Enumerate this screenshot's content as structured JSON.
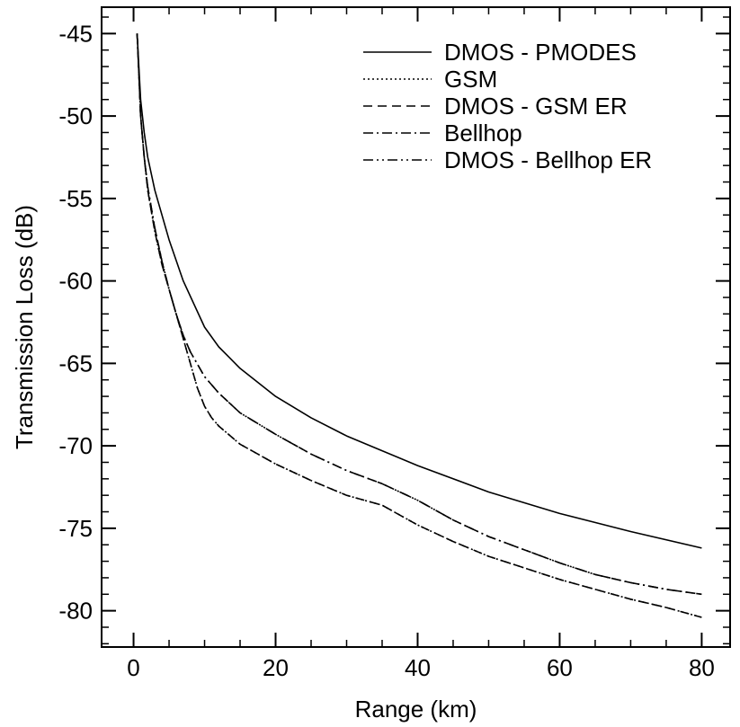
{
  "chart_data": {
    "type": "line",
    "xlabel": "Range (km)",
    "ylabel": "Transmission Loss (dB)",
    "xlim": [
      -4.5,
      84
    ],
    "ylim": [
      -82.2,
      -43.4
    ],
    "x_ticks": [
      0,
      20,
      40,
      60,
      80
    ],
    "x_tick_labels": [
      "0",
      "20",
      "40",
      "60",
      "80"
    ],
    "y_ticks": [
      -45,
      -50,
      -55,
      -60,
      -65,
      -70,
      -75,
      -80
    ],
    "y_tick_labels": [
      "-45",
      "-50",
      "-55",
      "-60",
      "-65",
      "-70",
      "-75",
      "-80"
    ],
    "x_minor_step": 5,
    "y_minor_step": 1,
    "grid": false,
    "legend_position": "top-right",
    "series": [
      {
        "name": "DMOS - PMODES",
        "line_style": "solid",
        "color": "#000000",
        "x": [
          0.5,
          0.8,
          1,
          1.5,
          2,
          3,
          4,
          5,
          7,
          10,
          12,
          15,
          20,
          25,
          30,
          35,
          40,
          50,
          60,
          70,
          80
        ],
        "y": [
          -45,
          -47.5,
          -49,
          -51,
          -52.5,
          -54.5,
          -56,
          -57.5,
          -60,
          -62.8,
          -64,
          -65.3,
          -67,
          -68.3,
          -69.4,
          -70.3,
          -71.2,
          -72.8,
          -74.1,
          -75.2,
          -76.2
        ]
      },
      {
        "name": "GSM",
        "line_style": "dotted",
        "color": "#000000",
        "x": [
          0.5,
          0.8,
          1,
          1.5,
          2,
          3,
          4,
          5,
          6,
          7,
          8,
          9,
          10,
          11,
          12,
          15,
          20,
          25,
          30,
          35,
          40,
          45,
          50,
          55,
          60,
          65,
          70,
          75,
          80
        ],
        "y": [
          -45,
          -48,
          -50,
          -52.5,
          -54.5,
          -57,
          -59,
          -60.5,
          -62,
          -63.5,
          -65,
          -66.5,
          -67.6,
          -68.3,
          -68.8,
          -69.9,
          -71.1,
          -72.1,
          -73,
          -73.6,
          -74.8,
          -75.8,
          -76.7,
          -77.4,
          -78.1,
          -78.7,
          -79.3,
          -79.8,
          -80.4
        ]
      },
      {
        "name": "DMOS - GSM ER",
        "line_style": "dashed",
        "color": "#000000",
        "x": [
          0.5,
          0.8,
          1,
          1.5,
          2,
          3,
          4,
          5,
          6,
          7,
          8,
          9,
          10,
          11,
          12,
          15,
          20,
          25,
          30,
          35,
          40,
          45,
          50,
          55,
          60,
          65,
          70,
          75,
          80
        ],
        "y": [
          -45,
          -48,
          -50,
          -52.5,
          -54.5,
          -57,
          -59,
          -60.5,
          -62,
          -63.5,
          -65,
          -66.5,
          -67.6,
          -68.3,
          -68.8,
          -69.9,
          -71.1,
          -72.1,
          -73,
          -73.6,
          -74.8,
          -75.8,
          -76.7,
          -77.4,
          -78.1,
          -78.7,
          -79.3,
          -79.8,
          -80.4
        ]
      },
      {
        "name": "Bellhop",
        "line_style": "dashdot",
        "color": "#000000",
        "x": [
          0.5,
          0.8,
          1,
          1.5,
          2,
          3,
          4,
          5,
          6,
          7,
          8,
          10,
          12,
          15,
          20,
          25,
          30,
          35,
          40,
          45,
          50,
          55,
          60,
          65,
          70,
          75,
          80
        ],
        "y": [
          -45,
          -48,
          -50,
          -52.5,
          -54.3,
          -56.8,
          -58.8,
          -60.5,
          -62,
          -63.3,
          -64.3,
          -65.8,
          -66.8,
          -68,
          -69.3,
          -70.5,
          -71.5,
          -72.3,
          -73.3,
          -74.5,
          -75.5,
          -76.3,
          -77.1,
          -77.8,
          -78.3,
          -78.7,
          -79
        ]
      },
      {
        "name": "DMOS - Bellhop ER",
        "line_style": "dashdotdot",
        "color": "#000000",
        "x": [
          0.5,
          0.8,
          1,
          1.5,
          2,
          3,
          4,
          5,
          6,
          7,
          8,
          10,
          12,
          15,
          20,
          25,
          30,
          35,
          40,
          45,
          50,
          55,
          60,
          65,
          70,
          75,
          80
        ],
        "y": [
          -45,
          -48,
          -50,
          -52.5,
          -54.3,
          -56.8,
          -58.8,
          -60.5,
          -62,
          -63.3,
          -64.3,
          -65.8,
          -66.8,
          -68,
          -69.3,
          -70.5,
          -71.5,
          -72.3,
          -73.3,
          -74.5,
          -75.5,
          -76.3,
          -77.1,
          -77.8,
          -78.3,
          -78.7,
          -79
        ]
      }
    ]
  }
}
